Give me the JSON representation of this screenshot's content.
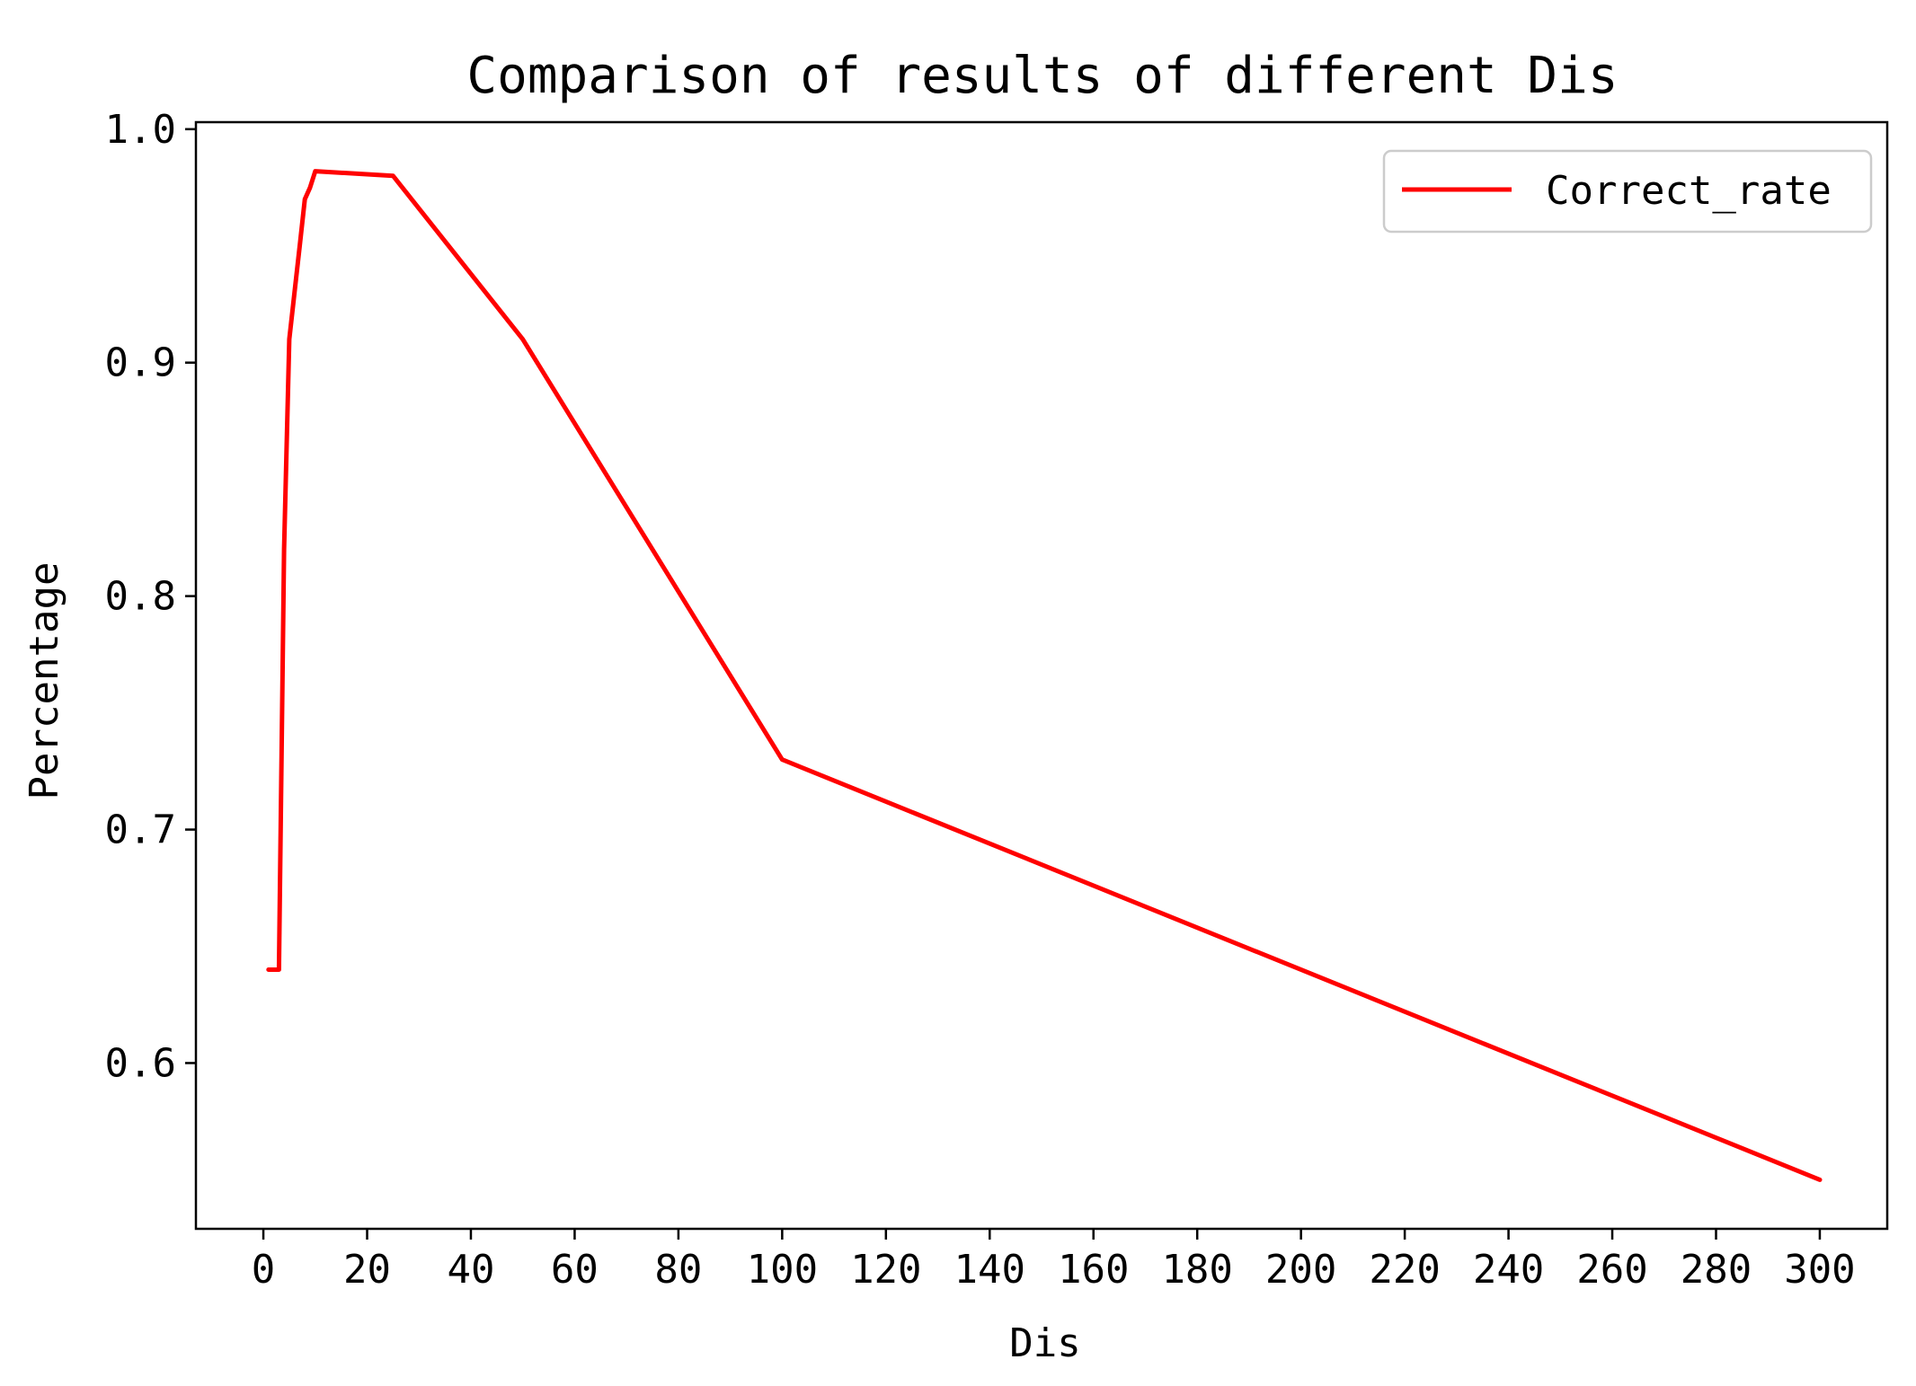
{
  "chart_data": {
    "type": "line",
    "title": "Comparison of results of different Dis",
    "xlabel": "Dis",
    "ylabel": "Percentage",
    "xlim": [
      -13,
      313
    ],
    "ylim": [
      0.529,
      1.003
    ],
    "xticks": [
      0,
      20,
      40,
      60,
      80,
      100,
      120,
      140,
      160,
      180,
      200,
      220,
      240,
      260,
      280,
      300
    ],
    "yticks": [
      0.6,
      0.7,
      0.8,
      0.9,
      1.0
    ],
    "ytick_labels": [
      "0.6",
      "0.7",
      "0.8",
      "0.9",
      "1.0"
    ],
    "grid": false,
    "legend_position": "top-right",
    "series": [
      {
        "name": "Correct_rate",
        "color": "#ff0000",
        "x": [
          1,
          2,
          3,
          4,
          5,
          6,
          7,
          8,
          9,
          10,
          25,
          50,
          100,
          300
        ],
        "y": [
          0.64,
          0.64,
          0.64,
          0.82,
          0.91,
          0.93,
          0.95,
          0.97,
          0.975,
          0.982,
          0.98,
          0.91,
          0.73,
          0.55
        ]
      }
    ]
  }
}
